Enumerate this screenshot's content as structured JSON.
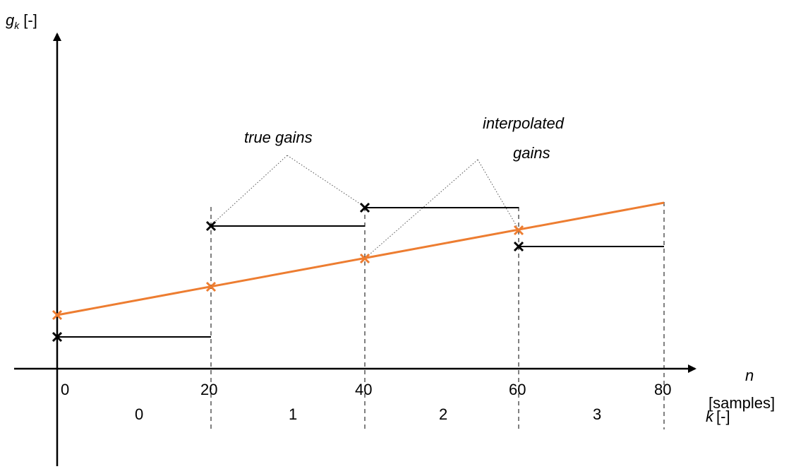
{
  "y_axis": {
    "symbol": "g",
    "subscript": "k",
    "unit": "[-]"
  },
  "x_axis": {
    "symbol": "n",
    "unit": "[samples]",
    "ticks": [
      "0",
      "20",
      "40",
      "60",
      "80"
    ]
  },
  "k_axis": {
    "symbol": "k",
    "unit": "[-]",
    "segments": [
      "0",
      "1",
      "2",
      "3"
    ]
  },
  "annotations": {
    "true_gains": "true gains",
    "interpolated_line1": "interpolated",
    "interpolated_line2": "gains"
  },
  "colors": {
    "interpolated": "#ED7D31",
    "true": "#000000",
    "guide": "#000000"
  },
  "chart_data": {
    "type": "line",
    "x_range": [
      0,
      80
    ],
    "true_gains": [
      {
        "k": 0,
        "n_start": 0,
        "n_end": 20
      },
      {
        "k": 1,
        "n_start": 20,
        "n_end": 40
      },
      {
        "k": 2,
        "n_start": 40,
        "n_end": 60
      },
      {
        "k": 3,
        "n_start": 60,
        "n_end": 80
      }
    ],
    "interpolated_points_n": [
      0,
      20,
      40,
      60,
      80
    ],
    "grid": false
  }
}
